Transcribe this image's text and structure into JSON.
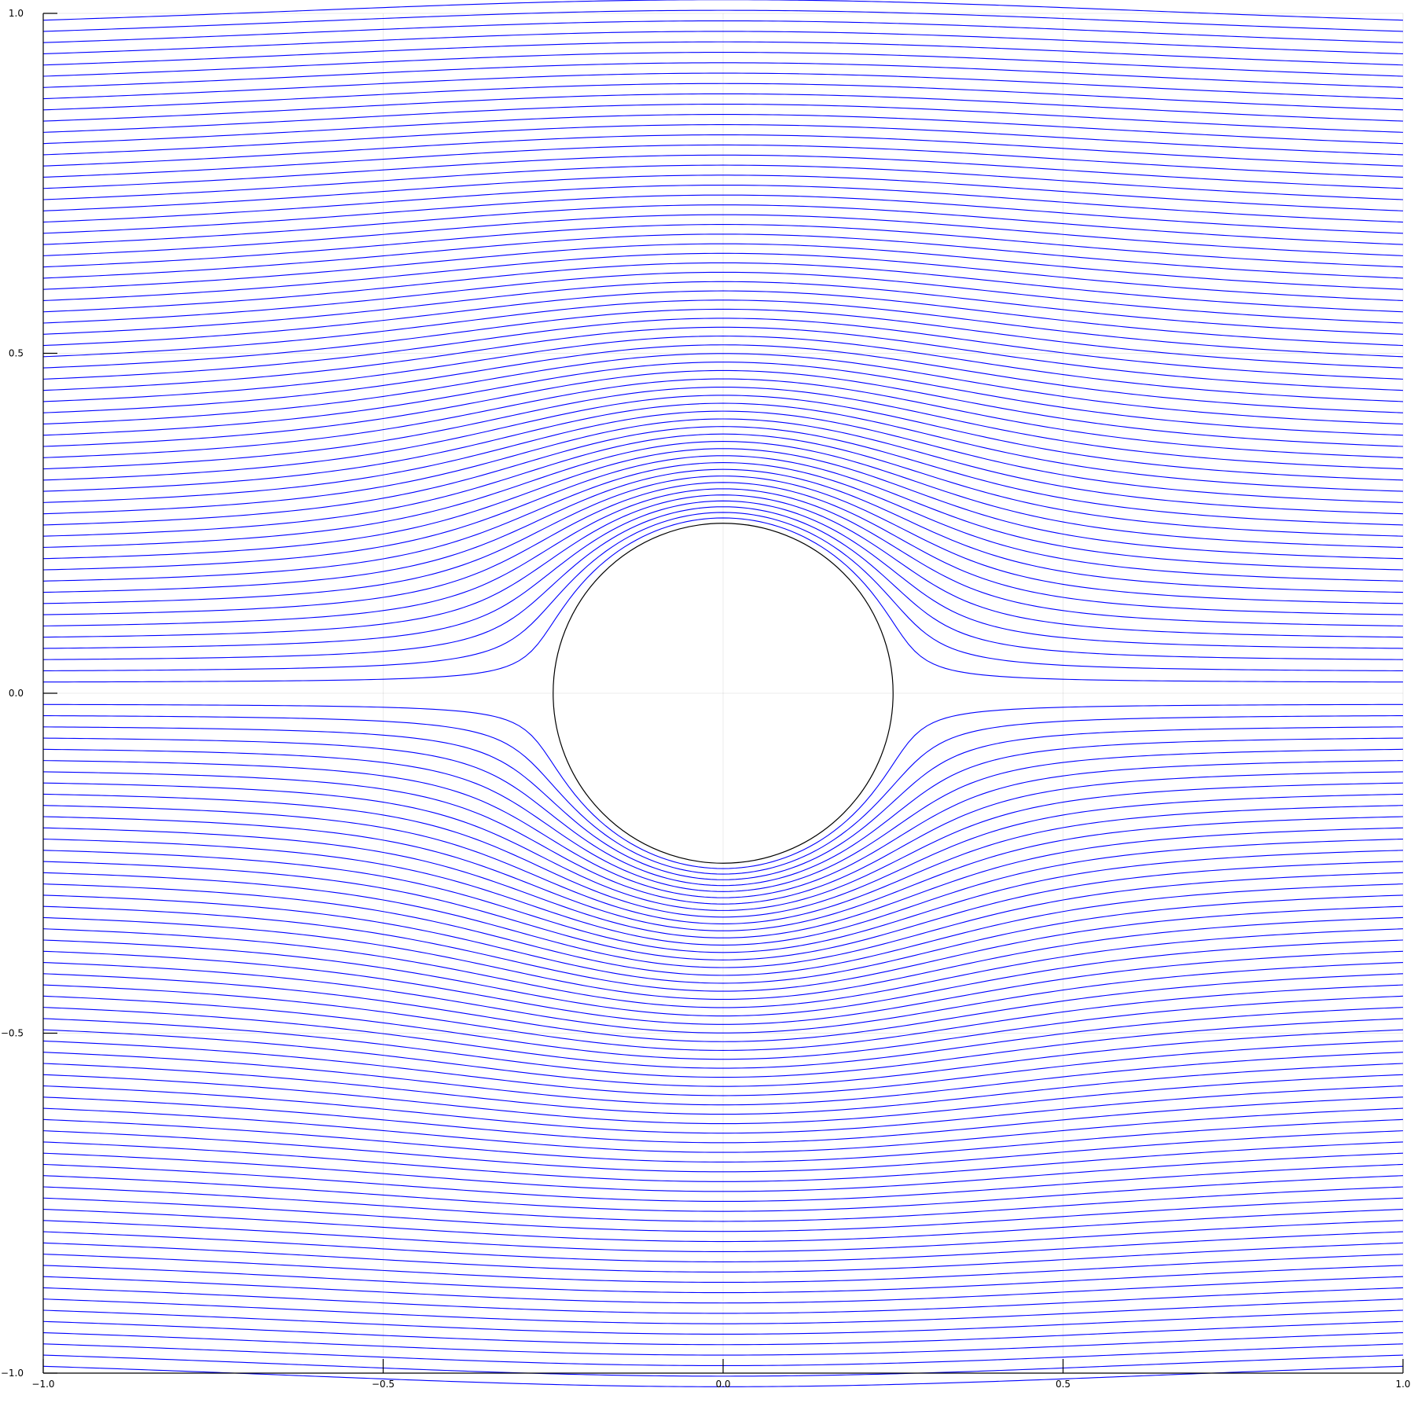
{
  "chart_data": {
    "type": "line",
    "title": "",
    "xlabel": "",
    "ylabel": "",
    "xlim": [
      -1.0,
      1.0
    ],
    "ylim": [
      -1.0,
      1.0
    ],
    "grid": true,
    "legend": "none",
    "x_ticks": [
      {
        "value": -1.0,
        "label": "−1.0"
      },
      {
        "value": -0.5,
        "label": "−0.5"
      },
      {
        "value": 0.0,
        "label": "0.0"
      },
      {
        "value": 0.5,
        "label": "0.5"
      },
      {
        "value": 1.0,
        "label": "1.0"
      }
    ],
    "y_ticks": [
      {
        "value": -1.0,
        "label": "−1.0"
      },
      {
        "value": -0.5,
        "label": "−0.5"
      },
      {
        "value": 0.0,
        "label": "0.0"
      },
      {
        "value": 0.5,
        "label": "0.5"
      },
      {
        "value": 1.0,
        "label": "1.0"
      }
    ],
    "series": [
      {
        "kind": "streamlines",
        "description_of_data": "uniform flow past a cylinder: psi = y * (1 - a^2/(x^2+y^2))",
        "cylinder_radius": 0.25,
        "upstream_y_min": -0.99,
        "upstream_y_max": 0.99,
        "line_count": 121,
        "x_range": [
          -1.0,
          1.0
        ],
        "color": "#0000ff"
      },
      {
        "kind": "circle",
        "center": [
          0.0,
          0.0
        ],
        "radius": 0.25,
        "color": "#000000"
      }
    ]
  }
}
